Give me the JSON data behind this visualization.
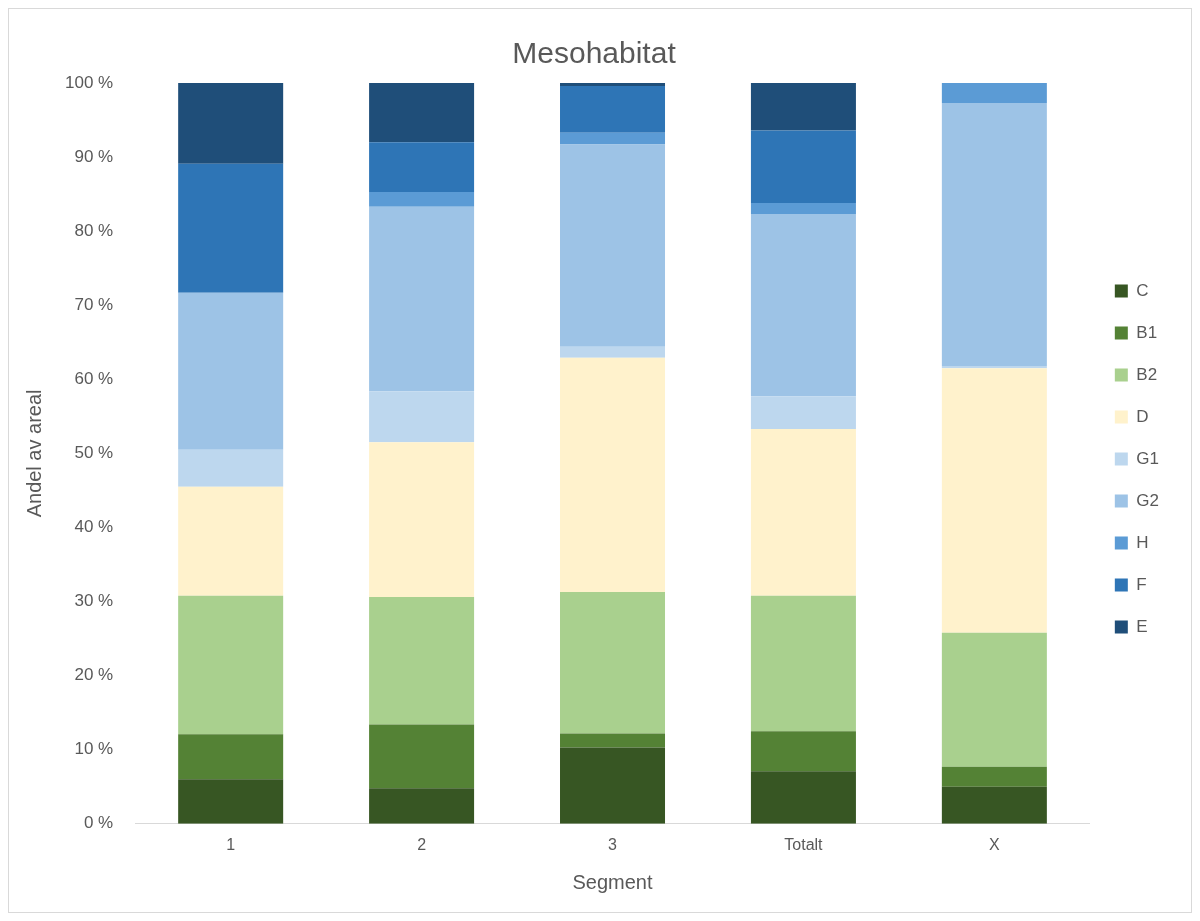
{
  "chart_data": {
    "type": "bar",
    "title": "Mesohabitat",
    "xlabel": "Segment",
    "ylabel": "Andel av areal",
    "categories": [
      "1",
      "2",
      "3",
      "Totalt",
      "X"
    ],
    "stacked": true,
    "legend": "right",
    "grid": false,
    "ylim": [
      0,
      100
    ],
    "yticks": [
      {
        "value": 0,
        "label": "0 %"
      },
      {
        "value": 10,
        "label": "10 %"
      },
      {
        "value": 20,
        "label": "20 %"
      },
      {
        "value": 30,
        "label": "30 %"
      },
      {
        "value": 40,
        "label": "40 %"
      },
      {
        "value": 50,
        "label": "50 %"
      },
      {
        "value": 60,
        "label": "60 %"
      },
      {
        "value": 70,
        "label": "70 %"
      },
      {
        "value": 80,
        "label": "80 %"
      },
      {
        "value": 90,
        "label": "90 %"
      },
      {
        "value": 100,
        "label": "100 %"
      }
    ],
    "series": [
      {
        "name": "C",
        "color": "#375623",
        "values": [
          6.0,
          4.8,
          10.3,
          7.1,
          5.0
        ]
      },
      {
        "name": "B1",
        "color": "#548235",
        "values": [
          6.1,
          8.6,
          1.9,
          5.4,
          2.7
        ]
      },
      {
        "name": "B2",
        "color": "#a9d08e",
        "values": [
          18.7,
          17.2,
          19.1,
          18.3,
          18.1
        ]
      },
      {
        "name": "D",
        "color": "#fff2cc",
        "values": [
          14.7,
          20.9,
          31.6,
          22.5,
          35.7
        ]
      },
      {
        "name": "G1",
        "color": "#bdd7ee",
        "values": [
          5.0,
          6.9,
          1.5,
          4.4,
          0.3
        ]
      },
      {
        "name": "G2",
        "color": "#9dc3e6",
        "values": [
          21.2,
          24.9,
          27.3,
          24.6,
          35.5
        ]
      },
      {
        "name": "H",
        "color": "#5b9bd5",
        "values": [
          0,
          2.0,
          1.6,
          1.5,
          2.7
        ]
      },
      {
        "name": "F",
        "color": "#2e75b6",
        "values": [
          17.4,
          6.7,
          6.3,
          9.8,
          0
        ]
      },
      {
        "name": "E",
        "color": "#1f4e79",
        "values": [
          10.9,
          8.0,
          0.4,
          6.4,
          0
        ]
      }
    ]
  }
}
